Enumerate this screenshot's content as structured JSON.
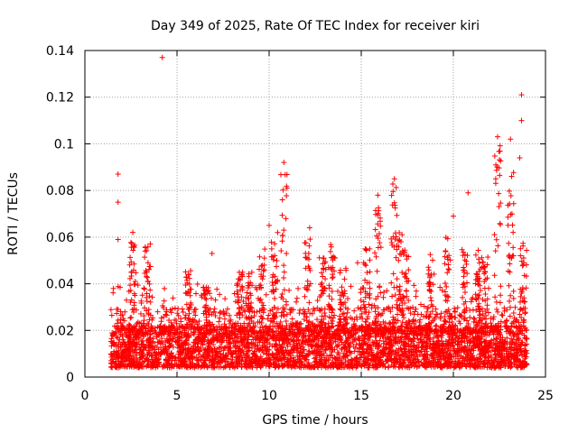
{
  "chart_data": {
    "type": "scatter",
    "title": "Day 349 of 2025, Rate Of TEC Index for receiver kiri",
    "xlabel": "GPS time / hours",
    "ylabel": "ROTI / TECUs",
    "xlim": [
      0,
      25
    ],
    "ylim": [
      0,
      0.14
    ],
    "x_ticks": [
      "0",
      "5",
      "10",
      "15",
      "20",
      "25"
    ],
    "y_ticks": [
      "0",
      "0.02",
      "0.04",
      "0.06",
      "0.08",
      "0.1",
      "0.12",
      "0.14"
    ],
    "grid": true,
    "marker": "+",
    "color": "#ff0000",
    "data_range_hours": [
      1.4,
      24.0
    ],
    "outliers": [
      {
        "x": 4.2,
        "y": 0.137
      },
      {
        "x": 23.7,
        "y": 0.121
      },
      {
        "x": 23.7,
        "y": 0.11
      },
      {
        "x": 22.4,
        "y": 0.103
      },
      {
        "x": 23.1,
        "y": 0.102
      },
      {
        "x": 23.6,
        "y": 0.094
      },
      {
        "x": 10.8,
        "y": 0.092
      },
      {
        "x": 1.8,
        "y": 0.087
      },
      {
        "x": 22.3,
        "y": 0.085
      },
      {
        "x": 16.8,
        "y": 0.085
      },
      {
        "x": 20.8,
        "y": 0.079
      },
      {
        "x": 15.9,
        "y": 0.078
      },
      {
        "x": 1.8,
        "y": 0.075
      },
      {
        "x": 20.0,
        "y": 0.069
      },
      {
        "x": 10.0,
        "y": 0.065
      },
      {
        "x": 12.2,
        "y": 0.064
      },
      {
        "x": 2.6,
        "y": 0.062
      },
      {
        "x": 1.8,
        "y": 0.059
      },
      {
        "x": 6.9,
        "y": 0.053
      },
      {
        "x": 14.8,
        "y": 0.049
      }
    ],
    "peak_clusters": [
      {
        "x": 2.6,
        "y_max": 0.058
      },
      {
        "x": 3.4,
        "y_max": 0.058
      },
      {
        "x": 5.6,
        "y_max": 0.046
      },
      {
        "x": 6.6,
        "y_max": 0.04
      },
      {
        "x": 8.4,
        "y_max": 0.045
      },
      {
        "x": 8.9,
        "y_max": 0.048
      },
      {
        "x": 9.6,
        "y_max": 0.056
      },
      {
        "x": 10.3,
        "y_max": 0.062
      },
      {
        "x": 10.8,
        "y_max": 0.087
      },
      {
        "x": 12.1,
        "y_max": 0.06
      },
      {
        "x": 12.9,
        "y_max": 0.056
      },
      {
        "x": 13.4,
        "y_max": 0.057
      },
      {
        "x": 14.0,
        "y_max": 0.047
      },
      {
        "x": 15.3,
        "y_max": 0.056
      },
      {
        "x": 15.9,
        "y_max": 0.073
      },
      {
        "x": 16.8,
        "y_max": 0.083
      },
      {
        "x": 17.1,
        "y_max": 0.062
      },
      {
        "x": 17.4,
        "y_max": 0.055
      },
      {
        "x": 18.8,
        "y_max": 0.055
      },
      {
        "x": 19.7,
        "y_max": 0.06
      },
      {
        "x": 20.6,
        "y_max": 0.055
      },
      {
        "x": 21.3,
        "y_max": 0.055
      },
      {
        "x": 21.7,
        "y_max": 0.054
      },
      {
        "x": 22.4,
        "y_max": 0.1
      },
      {
        "x": 23.1,
        "y_max": 0.088
      },
      {
        "x": 23.8,
        "y_max": 0.06
      }
    ]
  }
}
